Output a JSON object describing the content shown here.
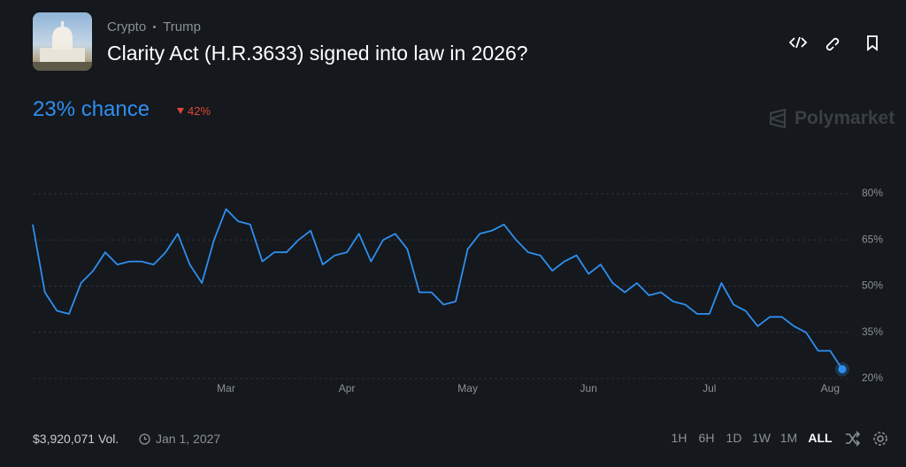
{
  "header": {
    "tags": [
      "Crypto",
      "Trump"
    ],
    "title": "Clarity Act (H.R.3633) signed into law in 2026?"
  },
  "chance": "23% chance",
  "change": "42%",
  "brand": "Polymarket",
  "chart_data": {
    "type": "line",
    "categories": [
      null,
      null,
      null,
      null,
      null,
      null,
      null,
      null,
      null,
      null,
      null,
      null,
      null,
      null,
      null,
      null,
      "Mar",
      null,
      null,
      null,
      null,
      null,
      null,
      null,
      null,
      null,
      "Apr",
      null,
      null,
      null,
      null,
      null,
      null,
      null,
      null,
      null,
      "May",
      null,
      null,
      null,
      null,
      null,
      null,
      null,
      null,
      null,
      "Jun",
      null,
      null,
      null,
      null,
      null,
      null,
      null,
      null,
      null,
      "Jul",
      null,
      null,
      null,
      null,
      null,
      null,
      null,
      null,
      null,
      "Aug",
      null
    ],
    "series": [
      {
        "color": "#2e8ff0",
        "values": [
          70,
          48,
          42,
          41,
          51,
          55,
          61,
          57,
          58,
          58,
          57,
          61,
          67,
          57,
          51,
          65,
          75,
          71,
          70,
          58,
          61,
          61,
          65,
          68,
          57,
          60,
          61,
          67,
          58,
          65,
          67,
          62,
          48,
          48,
          44,
          45,
          62,
          67,
          68,
          70,
          65,
          61,
          60,
          55,
          58,
          60,
          54,
          57,
          51,
          48,
          51,
          47,
          48,
          45,
          44,
          41,
          41,
          51,
          44,
          42,
          37,
          40,
          40,
          37,
          35,
          29,
          29,
          23
        ]
      }
    ],
    "ylim": [
      20,
      80
    ],
    "yticks": [
      {
        "value": 20,
        "label": "20%"
      },
      {
        "value": 35,
        "label": "35%"
      },
      {
        "value": 50,
        "label": "50%"
      },
      {
        "value": 65,
        "label": "65%"
      },
      {
        "value": 80,
        "label": "80%"
      }
    ],
    "grid": true
  },
  "footer": {
    "volume": "$3,920,071 Vol.",
    "end_date": "Jan 1, 2027",
    "ranges": [
      "1H",
      "6H",
      "1D",
      "1W",
      "1M",
      "ALL"
    ]
  }
}
